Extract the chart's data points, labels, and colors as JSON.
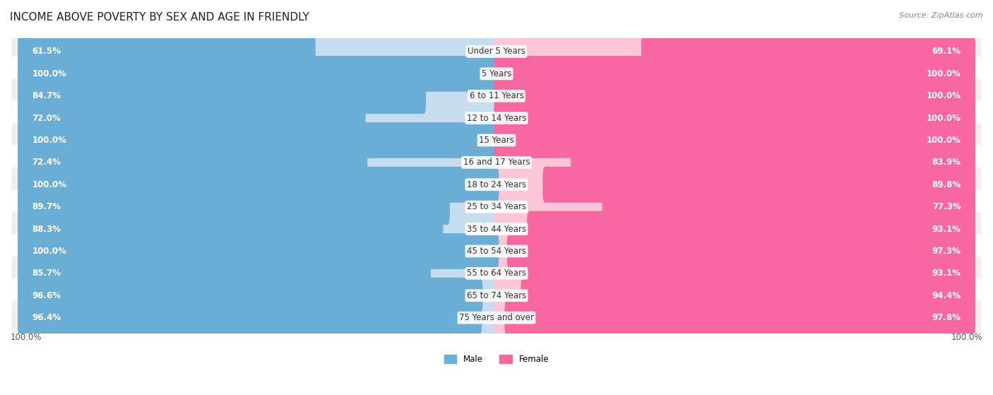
{
  "title": "INCOME ABOVE POVERTY BY SEX AND AGE IN FRIENDLY",
  "source": "Source: ZipAtlas.com",
  "categories": [
    "Under 5 Years",
    "5 Years",
    "6 to 11 Years",
    "12 to 14 Years",
    "15 Years",
    "16 and 17 Years",
    "18 to 24 Years",
    "25 to 34 Years",
    "35 to 44 Years",
    "45 to 54 Years",
    "55 to 64 Years",
    "65 to 74 Years",
    "75 Years and over"
  ],
  "male_values": [
    61.5,
    100.0,
    84.7,
    72.0,
    100.0,
    72.4,
    100.0,
    89.7,
    88.3,
    100.0,
    85.7,
    96.6,
    96.4
  ],
  "female_values": [
    69.1,
    100.0,
    100.0,
    100.0,
    100.0,
    83.9,
    89.8,
    77.3,
    93.1,
    97.3,
    93.1,
    94.4,
    97.8
  ],
  "male_color": "#6aaed6",
  "female_color": "#f768a1",
  "male_color_light": "#c6dcef",
  "female_color_light": "#fcc5d8",
  "male_label": "Male",
  "female_label": "Female",
  "bar_height": 0.62,
  "background_color": "#ffffff",
  "row_even_color": "#efefef",
  "row_odd_color": "#ffffff",
  "title_fontsize": 11,
  "label_fontsize": 8.5,
  "tick_fontsize": 8.5,
  "max_value": 100.0,
  "bottom_labels": [
    "100.0%",
    "100.0%"
  ]
}
